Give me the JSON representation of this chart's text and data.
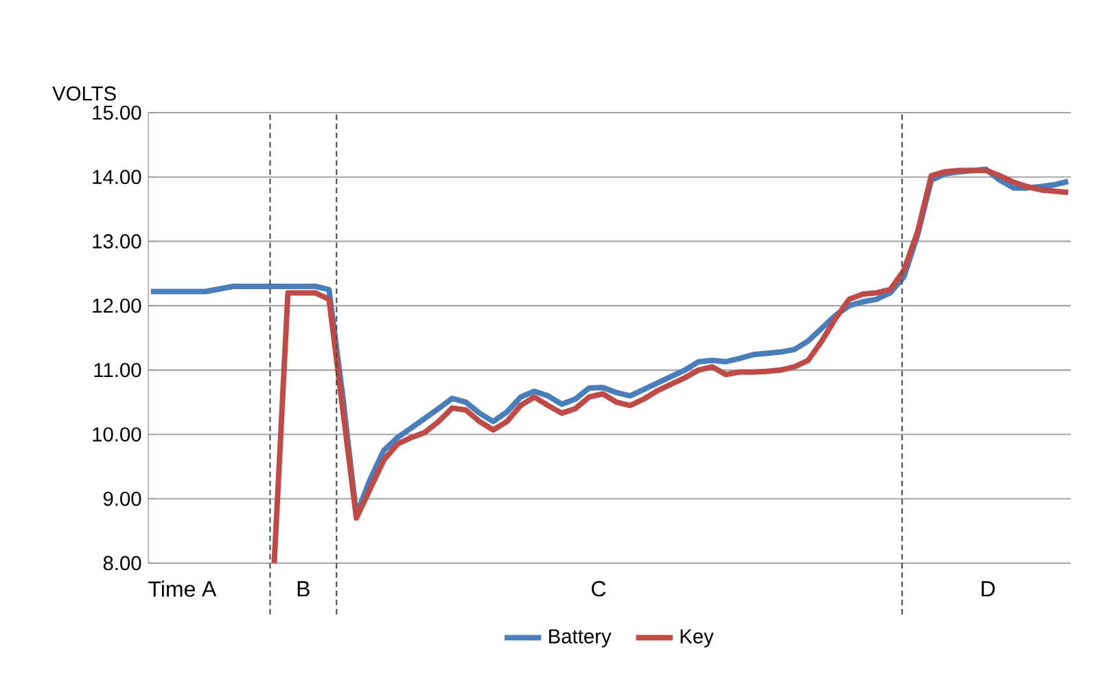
{
  "chart_data": {
    "type": "line",
    "xlabel": "Time",
    "ylabel": "VOLTS",
    "categories": [
      null,
      null,
      null,
      null,
      null,
      null,
      null,
      null,
      null,
      null,
      null,
      null,
      null,
      null,
      null,
      null,
      null,
      null,
      null,
      null,
      null,
      null,
      null,
      null,
      null,
      null,
      null,
      null,
      null,
      null,
      null,
      null,
      null,
      null,
      null,
      null,
      null,
      null,
      null,
      null,
      null,
      null,
      null,
      null,
      null,
      null,
      null,
      null,
      null,
      null,
      null,
      null,
      null,
      null,
      null,
      null,
      null,
      null,
      null,
      null,
      null,
      null,
      null,
      null,
      null,
      null,
      null,
      null
    ],
    "series": [
      {
        "name": "Battery",
        "color": "#4a7ebb",
        "values": [
          12.22,
          12.22,
          12.22,
          12.22,
          12.22,
          12.26,
          12.3,
          12.3,
          12.3,
          12.3,
          12.3,
          12.3,
          12.3,
          12.25,
          10.6,
          8.75,
          9.3,
          9.75,
          9.95,
          10.1,
          10.25,
          10.4,
          10.56,
          10.5,
          10.33,
          10.2,
          10.35,
          10.58,
          10.67,
          10.6,
          10.47,
          10.55,
          10.72,
          10.73,
          10.65,
          10.6,
          10.7,
          10.8,
          10.9,
          11.0,
          11.13,
          11.15,
          11.13,
          11.18,
          11.24,
          11.26,
          11.28,
          11.32,
          11.45,
          11.65,
          11.85,
          12.0,
          12.06,
          12.1,
          12.2,
          12.45,
          13.1,
          13.95,
          14.05,
          14.08,
          14.1,
          14.12,
          13.95,
          13.83,
          13.83,
          13.85,
          13.88,
          13.93
        ]
      },
      {
        "name": "Key",
        "color": "#be4b48",
        "values": [
          null,
          null,
          null,
          null,
          null,
          null,
          null,
          null,
          null,
          8.0,
          12.2,
          12.2,
          12.2,
          12.1,
          10.4,
          8.7,
          9.15,
          9.6,
          9.85,
          9.95,
          10.03,
          10.2,
          10.41,
          10.38,
          10.2,
          10.07,
          10.2,
          10.45,
          10.58,
          10.45,
          10.33,
          10.4,
          10.58,
          10.63,
          10.5,
          10.45,
          10.55,
          10.68,
          10.78,
          10.88,
          11.0,
          11.05,
          10.93,
          10.97,
          10.97,
          10.98,
          11.0,
          11.05,
          11.15,
          11.45,
          11.8,
          12.1,
          12.18,
          12.2,
          12.25,
          12.55,
          13.15,
          14.02,
          14.08,
          14.1,
          14.1,
          14.1,
          14.02,
          13.92,
          13.85,
          13.8,
          13.78,
          13.76
        ]
      }
    ],
    "ylim": [
      8,
      15
    ],
    "yticks": [
      {
        "value": 8,
        "label": "8.00"
      },
      {
        "value": 9,
        "label": "9.00"
      },
      {
        "value": 10,
        "label": "10.00"
      },
      {
        "value": 11,
        "label": "11.00"
      },
      {
        "value": 12,
        "label": "12.00"
      },
      {
        "value": 13,
        "label": "13.00"
      },
      {
        "value": 14,
        "label": "14.00"
      },
      {
        "value": 15,
        "label": "15.00"
      }
    ],
    "tick_labels": "y",
    "grid": "y",
    "legend": "bottom",
    "marker": "none",
    "line_style": "solid",
    "annotations": [
      "A",
      "B",
      "C",
      "D"
    ]
  }
}
